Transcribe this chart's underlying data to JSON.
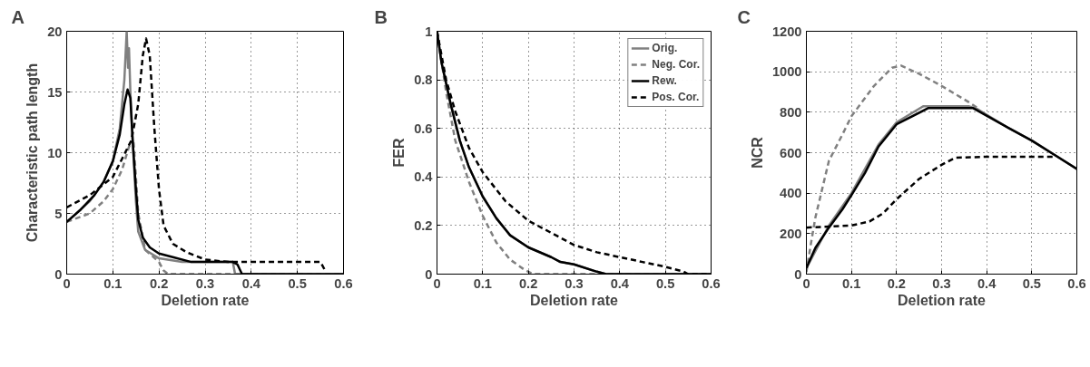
{
  "chart_data": [
    {
      "type": "line",
      "title": "A",
      "xlabel": "Deletion rate",
      "ylabel": "Characteristic path length",
      "xlim": [
        0,
        0.6
      ],
      "ylim": [
        0,
        20
      ],
      "xticks": [
        0,
        0.1,
        0.2,
        0.3,
        0.4,
        0.5,
        0.6
      ],
      "yticks": [
        0,
        5,
        10,
        15,
        20
      ],
      "grid": true,
      "series": [
        {
          "color": "#808080",
          "line_style": "solid",
          "x": [
            0,
            0.05,
            0.08,
            0.1,
            0.115,
            0.125,
            0.13,
            0.133,
            0.135,
            0.138,
            0.143,
            0.15,
            0.155,
            0.17,
            0.2,
            0.25,
            0.36,
            0.365,
            0.6
          ],
          "values": [
            4.3,
            6,
            7.6,
            9.3,
            12,
            16,
            20,
            17,
            18.6,
            15,
            11,
            6,
            3.5,
            2,
            1.3,
            1,
            1,
            0,
            0
          ]
        },
        {
          "color": "#808080",
          "line_style": "dashed",
          "x": [
            0,
            0.05,
            0.08,
            0.1,
            0.12,
            0.135,
            0.145,
            0.15,
            0.155,
            0.17,
            0.2,
            0.21,
            0.22,
            0.6
          ],
          "values": [
            4.3,
            5,
            6,
            7,
            8.6,
            10.5,
            10.8,
            8,
            5,
            2,
            1,
            0.3,
            0,
            0
          ]
        },
        {
          "color": "#000000",
          "line_style": "solid",
          "x": [
            0,
            0.03,
            0.06,
            0.08,
            0.1,
            0.115,
            0.125,
            0.132,
            0.138,
            0.143,
            0.15,
            0.155,
            0.165,
            0.18,
            0.2,
            0.23,
            0.27,
            0.3,
            0.36,
            0.37,
            0.38,
            0.6
          ],
          "values": [
            4.3,
            5.3,
            6.5,
            7.6,
            9.3,
            11.5,
            14,
            15.2,
            14.5,
            11,
            7,
            4.5,
            3,
            2.2,
            1.7,
            1.4,
            1,
            1,
            1,
            0.8,
            0,
            0
          ]
        },
        {
          "color": "#000000",
          "line_style": "dashed",
          "x": [
            0,
            0.05,
            0.1,
            0.12,
            0.14,
            0.155,
            0.165,
            0.172,
            0.18,
            0.19,
            0.2,
            0.21,
            0.23,
            0.26,
            0.3,
            0.35,
            0.55,
            0.56
          ],
          "values": [
            5.5,
            6.5,
            8,
            9.5,
            11,
            14,
            18,
            19.4,
            18,
            12,
            7,
            4,
            2.5,
            1.8,
            1.2,
            1,
            1,
            0.3
          ]
        }
      ]
    },
    {
      "type": "line",
      "title": "B",
      "xlabel": "Deletion rate",
      "ylabel": "FER",
      "xlim": [
        0,
        0.6
      ],
      "ylim": [
        0,
        1
      ],
      "xticks": [
        0,
        0.1,
        0.2,
        0.3,
        0.4,
        0.5,
        0.6
      ],
      "yticks": [
        0,
        0.2,
        0.4,
        0.6,
        0.8,
        1
      ],
      "grid": true,
      "legend": "top right",
      "series": [
        {
          "name": "Orig.",
          "color": "#808080",
          "line_style": "solid",
          "x": [
            0,
            0.01,
            0.03,
            0.05,
            0.07,
            0.1,
            0.13,
            0.16,
            0.2,
            0.25,
            0.27,
            0.3,
            0.35,
            0.37,
            0.6
          ],
          "values": [
            1,
            0.87,
            0.7,
            0.55,
            0.44,
            0.32,
            0.23,
            0.16,
            0.11,
            0.07,
            0.05,
            0.04,
            0.01,
            0,
            0
          ]
        },
        {
          "name": "Neg. Cor.",
          "color": "#808080",
          "line_style": "dashed",
          "x": [
            0,
            0.02,
            0.04,
            0.07,
            0.1,
            0.13,
            0.16,
            0.19,
            0.21,
            0.6
          ],
          "values": [
            1,
            0.75,
            0.55,
            0.38,
            0.24,
            0.13,
            0.06,
            0.02,
            0,
            0
          ]
        },
        {
          "name": "Rew.",
          "color": "#000000",
          "line_style": "solid",
          "x": [
            0,
            0.01,
            0.03,
            0.05,
            0.07,
            0.1,
            0.13,
            0.16,
            0.2,
            0.25,
            0.27,
            0.3,
            0.35,
            0.37,
            0.6
          ],
          "values": [
            1,
            0.87,
            0.7,
            0.55,
            0.44,
            0.32,
            0.23,
            0.16,
            0.11,
            0.07,
            0.05,
            0.04,
            0.01,
            0,
            0
          ]
        },
        {
          "name": "Pos. Cor.",
          "color": "#000000",
          "line_style": "dashed",
          "x": [
            0,
            0.02,
            0.04,
            0.07,
            0.1,
            0.15,
            0.2,
            0.25,
            0.3,
            0.35,
            0.4,
            0.45,
            0.5,
            0.54,
            0.55,
            0.6
          ],
          "values": [
            1,
            0.8,
            0.67,
            0.52,
            0.42,
            0.3,
            0.22,
            0.17,
            0.12,
            0.09,
            0.07,
            0.05,
            0.03,
            0.01,
            0,
            0
          ]
        }
      ]
    },
    {
      "type": "line",
      "title": "C",
      "xlabel": "Deletion rate",
      "ylabel": "NCR",
      "xlim": [
        0,
        0.6
      ],
      "ylim": [
        0,
        1200
      ],
      "xticks": [
        0,
        0.1,
        0.2,
        0.3,
        0.4,
        0.5,
        0.6
      ],
      "yticks": [
        0,
        200,
        400,
        600,
        800,
        1000,
        1200
      ],
      "grid": true,
      "series": [
        {
          "color": "#808080",
          "line_style": "solid",
          "x": [
            0,
            0.05,
            0.1,
            0.16,
            0.2,
            0.26,
            0.36,
            0.38,
            0.45,
            0.5,
            0.55,
            0.6
          ],
          "values": [
            30,
            240,
            400,
            640,
            750,
            830,
            830,
            815,
            720,
            660,
            590,
            520
          ]
        },
        {
          "color": "#808080",
          "line_style": "dashed",
          "x": [
            0,
            0.01,
            0.02,
            0.05,
            0.08,
            0.1,
            0.15,
            0.19,
            0.21,
            0.25,
            0.3,
            0.36,
            0.38
          ],
          "values": [
            10,
            150,
            280,
            560,
            690,
            780,
            930,
            1020,
            1030,
            990,
            930,
            850,
            820
          ]
        },
        {
          "color": "#000000",
          "line_style": "solid",
          "x": [
            0,
            0.02,
            0.05,
            0.08,
            0.1,
            0.13,
            0.16,
            0.2,
            0.27,
            0.37,
            0.45,
            0.5,
            0.55,
            0.6
          ],
          "values": [
            30,
            130,
            230,
            320,
            390,
            500,
            630,
            740,
            820,
            820,
            720,
            660,
            590,
            520
          ]
        },
        {
          "color": "#000000",
          "line_style": "dashed",
          "x": [
            0,
            0.1,
            0.14,
            0.17,
            0.2,
            0.25,
            0.3,
            0.33,
            0.4,
            0.55
          ],
          "values": [
            230,
            240,
            260,
            300,
            370,
            470,
            540,
            575,
            580,
            580
          ]
        }
      ]
    }
  ]
}
